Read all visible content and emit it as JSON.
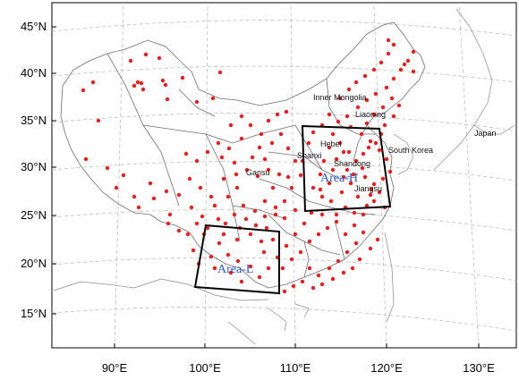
{
  "axes": {
    "lat_labels": [
      "45°N",
      "40°N",
      "35°N",
      "30°N",
      "25°N",
      "20°N",
      "15°N"
    ],
    "lon_labels": [
      "90°E",
      "100°E",
      "110°E",
      "120°E",
      "130°E"
    ]
  },
  "regions": {
    "inner_mongolia": "Inner Mongolia",
    "liaoning": "Liaoning",
    "hebei": "Hebei",
    "shanxi": "Shanxi",
    "shandong": "Shandong",
    "gansu": "Gansu",
    "jiangsu": "Jiangsu",
    "south_korea": "South Korea",
    "japan": "Japan"
  },
  "areas": {
    "area_h": "Area-H",
    "area_l": "Area-L"
  },
  "colors": {
    "station": "#ee1c1c",
    "area_label": "#2b5bd7",
    "box": "#000000",
    "border": "#777777"
  }
}
